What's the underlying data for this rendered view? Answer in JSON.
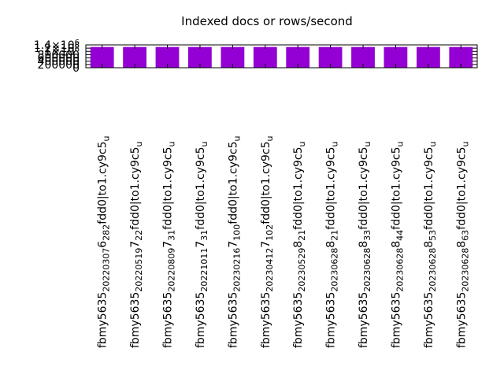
{
  "chart_data": {
    "type": "bar",
    "title": "Indexed docs or rows/second",
    "xlabel": "",
    "ylabel": "",
    "ylim": [
      0,
      1400000
    ],
    "y_ticks": [
      {
        "value": 0,
        "label": "0"
      },
      {
        "value": 200000,
        "label": "200000"
      },
      {
        "value": 400000,
        "label": "400000"
      },
      {
        "value": 600000,
        "label": "600000"
      },
      {
        "value": 800000,
        "label": "800000"
      },
      {
        "value": 1000000,
        "label": "1×10^6"
      },
      {
        "value": 1200000,
        "label": "1.2×10^6"
      },
      {
        "value": 1400000,
        "label": "1.4×10^6"
      }
    ],
    "categories": [
      {
        "main": "fbmy5635",
        "sub": "20220307",
        "mid": "6",
        "sub2": "282",
        "rest": "fdd0|to1.cy9c5",
        "end": "u"
      },
      {
        "main": "fbmy5635",
        "sub": "20220519",
        "mid": "7",
        "sub2": "22",
        "rest": "fdd0|to1.cy9c5",
        "end": "u"
      },
      {
        "main": "fbmy5635",
        "sub": "20220809",
        "mid": "7",
        "sub2": "31",
        "rest": "fdd0|to1.cy9c5",
        "end": "u"
      },
      {
        "main": "fbmy5635",
        "sub": "20221011",
        "mid": "7",
        "sub2": "31",
        "rest": "fdd0|to1.cy9c5",
        "end": "u"
      },
      {
        "main": "fbmy5635",
        "sub": "20230216",
        "mid": "7",
        "sub2": "100",
        "rest": "fdd0|to1.cy9c5",
        "end": "u"
      },
      {
        "main": "fbmy5635",
        "sub": "20230412",
        "mid": "7",
        "sub2": "102",
        "rest": "fdd0|to1.cy9c5",
        "end": "u"
      },
      {
        "main": "fbmy5635",
        "sub": "20230529",
        "mid": "8",
        "sub2": "21",
        "rest": "fdd0|to1.cy9c5",
        "end": "u"
      },
      {
        "main": "fbmy5635",
        "sub": "20230628",
        "mid": "8",
        "sub2": "21",
        "rest": "fdd0|to1.cy9c5",
        "end": "u"
      },
      {
        "main": "fbmy5635",
        "sub": "20230628",
        "mid": "8",
        "sub2": "33",
        "rest": "fdd0|to1.cy9c5",
        "end": "u"
      },
      {
        "main": "fbmy5635",
        "sub": "20230628",
        "mid": "8",
        "sub2": "44",
        "rest": "fdd0|to1.cy9c5",
        "end": "u"
      },
      {
        "main": "fbmy5635",
        "sub": "20230628",
        "mid": "8",
        "sub2": "53",
        "rest": "fdd0|to1.cy9c5",
        "end": "u"
      },
      {
        "main": "fbmy5635",
        "sub": "20230628",
        "mid": "8",
        "sub2": "63",
        "rest": "fdd0|to1.cy9c5",
        "end": "u"
      }
    ],
    "values": [
      1270000,
      1270000,
      1270000,
      1270000,
      1270000,
      1270000,
      1270000,
      1270000,
      1270000,
      1270000,
      1270000,
      1270000
    ],
    "bar_color": "#9400d3",
    "grid": false,
    "legend": "none"
  }
}
